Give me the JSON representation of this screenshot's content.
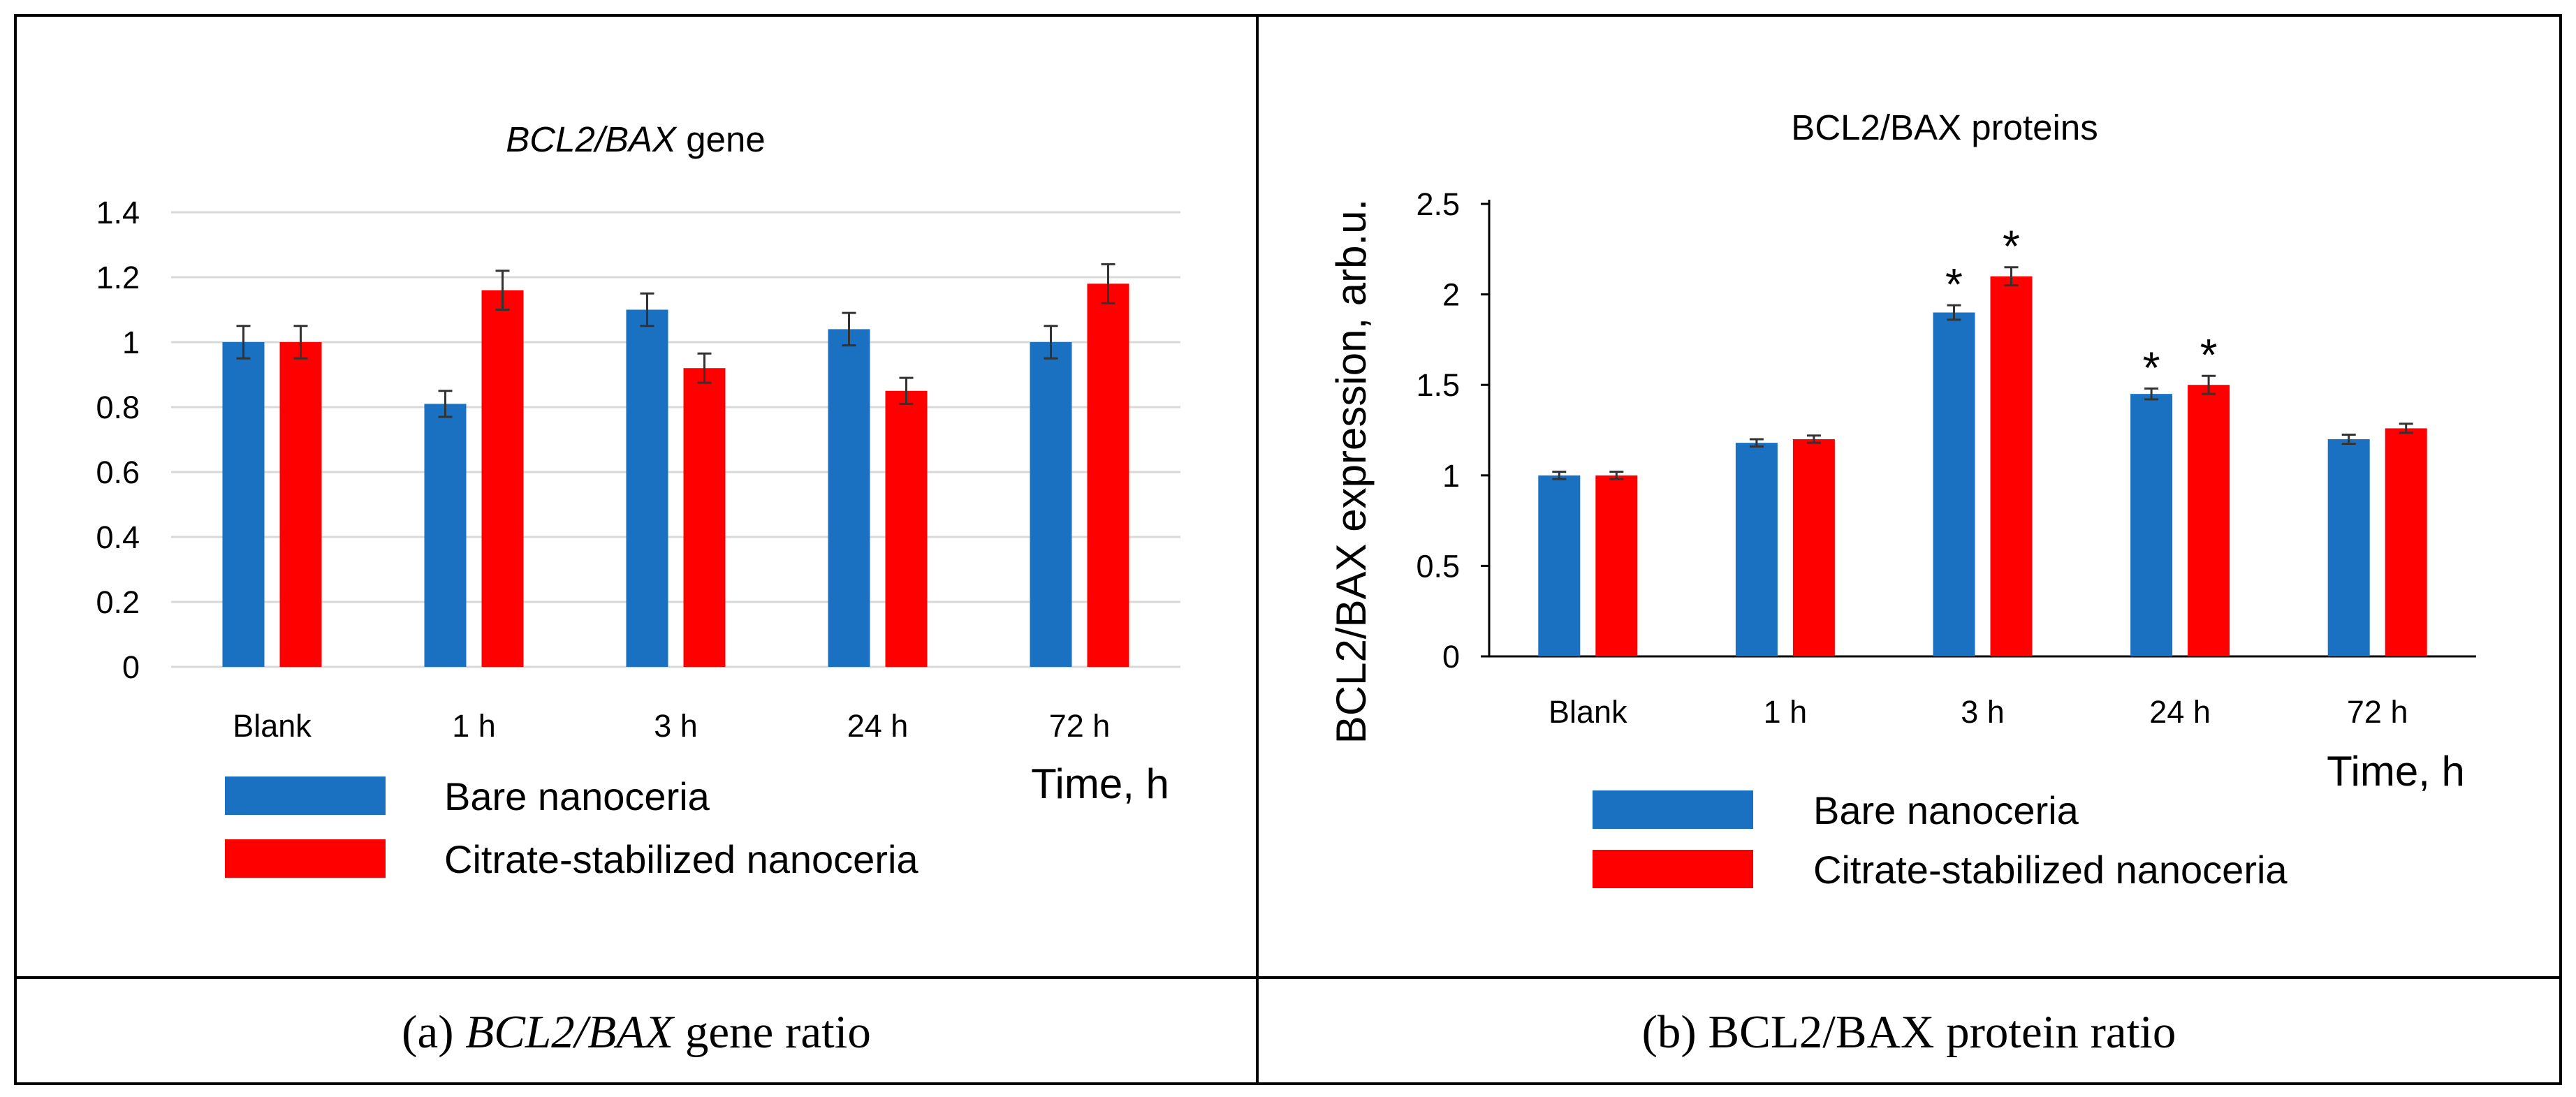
{
  "colors": {
    "bare": "#1a70c1",
    "citrate": "#ff0000",
    "grid": "#d9d9d9",
    "axis": "#000000"
  },
  "legend": {
    "bare": "Bare nanoceria",
    "citrate": "Citrate-stabilized nanoceria"
  },
  "captions": {
    "a": {
      "prefix": "(a) ",
      "italic": "BCL2/BAX",
      "suffix": " gene ratio"
    },
    "b": "(b) BCL2/BAX protein ratio"
  },
  "chart_data": [
    {
      "type": "bar",
      "title": {
        "italic": "BCL2/BAX",
        "rest": " gene"
      },
      "xlabel": "Time, h",
      "ylabel": "",
      "ylim": [
        0,
        1.4
      ],
      "yticks": [
        "0",
        "0.2",
        "0.4",
        "0.6",
        "0.8",
        "1",
        "1.2",
        "1.4"
      ],
      "grid": true,
      "categories": [
        "Blank",
        "1 h",
        "3 h",
        "24 h",
        "72 h"
      ],
      "series": [
        {
          "name": "Bare nanoceria",
          "values": [
            1.0,
            0.81,
            1.1,
            1.04,
            1.0
          ],
          "errors": [
            0.05,
            0.04,
            0.05,
            0.05,
            0.05
          ],
          "marks": [
            "",
            "",
            "",
            "",
            ""
          ]
        },
        {
          "name": "Citrate-stabilized nanoceria",
          "values": [
            1.0,
            1.16,
            0.92,
            0.85,
            1.18
          ],
          "errors": [
            0.05,
            0.06,
            0.045,
            0.04,
            0.06
          ],
          "marks": [
            "",
            "",
            "",
            "",
            ""
          ]
        }
      ]
    },
    {
      "type": "bar",
      "title": "BCL2/BAX proteins",
      "xlabel": "Time, h",
      "ylabel": "BCL2/BAX expression, arb.u.",
      "ylim": [
        0,
        2.5
      ],
      "yticks": [
        "0",
        "0.5",
        "1",
        "1.5",
        "2",
        "2.5"
      ],
      "grid": false,
      "categories": [
        "Blank",
        "1 h",
        "3 h",
        "24 h",
        "72 h"
      ],
      "series": [
        {
          "name": "Bare nanoceria",
          "values": [
            1.0,
            1.18,
            1.9,
            1.45,
            1.2
          ],
          "errors": [
            0.02,
            0.02,
            0.04,
            0.03,
            0.025
          ],
          "marks": [
            "",
            "",
            "*",
            "*",
            ""
          ]
        },
        {
          "name": "Citrate-stabilized nanoceria",
          "values": [
            1.0,
            1.2,
            2.1,
            1.5,
            1.26
          ],
          "errors": [
            0.02,
            0.02,
            0.05,
            0.05,
            0.025
          ],
          "marks": [
            "",
            "",
            "*",
            "*",
            ""
          ]
        }
      ]
    }
  ]
}
